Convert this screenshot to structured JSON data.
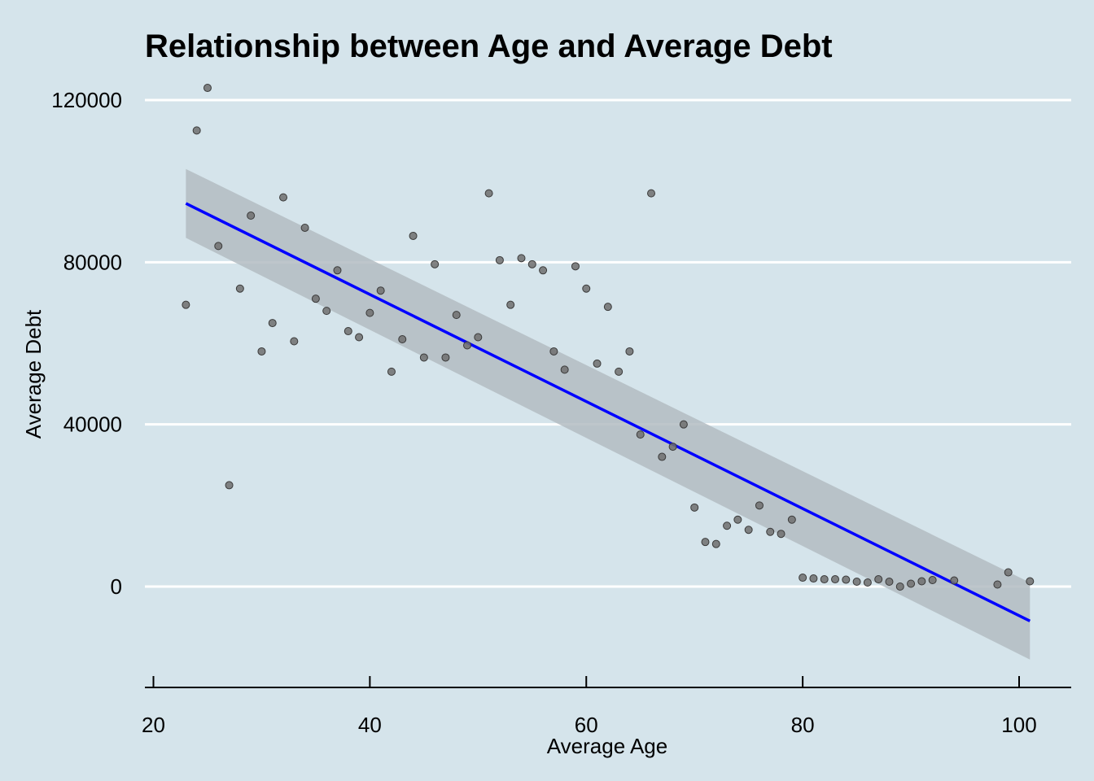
{
  "chart_data": {
    "type": "scatter",
    "title": "Relationship between Age and Average Debt",
    "xlabel": "Average Age",
    "ylabel": "Average Debt",
    "xlim": [
      19,
      105
    ],
    "ylim": [
      -25000,
      125000
    ],
    "x_ticks": [
      20,
      40,
      60,
      80,
      100
    ],
    "y_ticks": [
      0,
      40000,
      80000,
      120000
    ],
    "grid": "horizontal",
    "points": [
      [
        23,
        69500
      ],
      [
        24,
        112500
      ],
      [
        25,
        123000
      ],
      [
        26,
        84000
      ],
      [
        27,
        25000
      ],
      [
        28,
        73500
      ],
      [
        29,
        91500
      ],
      [
        30,
        58000
      ],
      [
        31,
        65000
      ],
      [
        32,
        96000
      ],
      [
        33,
        60500
      ],
      [
        34,
        88500
      ],
      [
        35,
        71000
      ],
      [
        36,
        68000
      ],
      [
        37,
        78000
      ],
      [
        38,
        63000
      ],
      [
        39,
        61500
      ],
      [
        40,
        67500
      ],
      [
        41,
        73000
      ],
      [
        42,
        53000
      ],
      [
        43,
        61000
      ],
      [
        44,
        86500
      ],
      [
        45,
        56500
      ],
      [
        46,
        79500
      ],
      [
        47,
        56500
      ],
      [
        48,
        67000
      ],
      [
        49,
        59500
      ],
      [
        50,
        61500
      ],
      [
        51,
        97000
      ],
      [
        52,
        80500
      ],
      [
        53,
        69500
      ],
      [
        54,
        81000
      ],
      [
        55,
        79500
      ],
      [
        56,
        78000
      ],
      [
        57,
        58000
      ],
      [
        58,
        53500
      ],
      [
        59,
        79000
      ],
      [
        60,
        73500
      ],
      [
        61,
        55000
      ],
      [
        62,
        69000
      ],
      [
        63,
        53000
      ],
      [
        64,
        58000
      ],
      [
        65,
        37500
      ],
      [
        66,
        97000
      ],
      [
        67,
        32000
      ],
      [
        68,
        34500
      ],
      [
        69,
        40000
      ],
      [
        70,
        19500
      ],
      [
        71,
        11000
      ],
      [
        72,
        10500
      ],
      [
        73,
        15000
      ],
      [
        74,
        16500
      ],
      [
        75,
        14000
      ],
      [
        76,
        20000
      ],
      [
        77,
        13500
      ],
      [
        78,
        13000
      ],
      [
        79,
        16500
      ],
      [
        80,
        2200
      ],
      [
        81,
        2000
      ],
      [
        82,
        1800
      ],
      [
        83,
        1800
      ],
      [
        84,
        1700
      ],
      [
        85,
        1200
      ],
      [
        86,
        1000
      ],
      [
        87,
        1800
      ],
      [
        88,
        1200
      ],
      [
        89,
        0
      ],
      [
        90,
        700
      ],
      [
        91,
        1300
      ],
      [
        92,
        1600
      ],
      [
        94,
        1500
      ],
      [
        98,
        500
      ],
      [
        99,
        3500
      ],
      [
        101,
        1300
      ]
    ],
    "trend_line": {
      "color": "#0000ff",
      "x": [
        23,
        101
      ],
      "y": [
        94500,
        -8500
      ],
      "ci_upper": [
        103000,
        1000
      ],
      "ci_lower": [
        86000,
        -18000
      ],
      "ci_color": "#b3bcc2"
    },
    "point_color": "#6e6e6e",
    "background_color": "#d5e4eb"
  }
}
